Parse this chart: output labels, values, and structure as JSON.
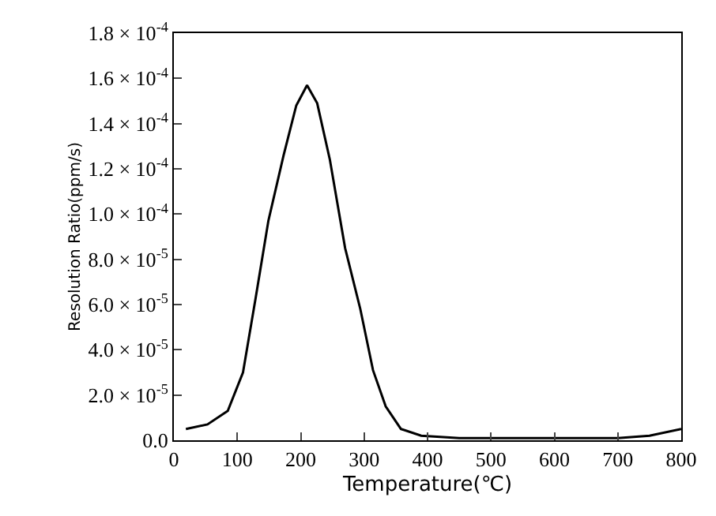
{
  "chart_data": {
    "type": "line",
    "xlabel": "Temperature(℃)",
    "ylabel": "Resolution Ratio(ppm/s)",
    "x": [
      19,
      53,
      85,
      109,
      129,
      149,
      173,
      193,
      210,
      226,
      246,
      270,
      294,
      314,
      334,
      358,
      390,
      450,
      500,
      600,
      700,
      750,
      800
    ],
    "series": [
      {
        "color": "#000000",
        "values": [
          5e-06,
          7e-06,
          1.3e-05,
          3e-05,
          6.3e-05,
          9.7e-05,
          0.000126,
          0.000148,
          0.000157,
          0.000149,
          0.000124,
          8.5e-05,
          5.8e-05,
          3.1e-05,
          1.5e-05,
          5e-06,
          2e-06,
          1e-06,
          1e-06,
          1e-06,
          1e-06,
          2e-06,
          5e-06
        ]
      }
    ],
    "xlim": [
      0,
      800
    ],
    "xticks": [
      0,
      100,
      200,
      300,
      400,
      500,
      600,
      700,
      800
    ],
    "ylim": [
      0,
      0.00018
    ],
    "yticks": [
      {
        "value": 0,
        "label": "0.0"
      },
      {
        "value": 2e-05,
        "label": "2.0 × 10$^{-5}$"
      },
      {
        "value": 4e-05,
        "label": "4.0 × 10$^{-5}$"
      },
      {
        "value": 6e-05,
        "label": "6.0 × 10$^{-5}$"
      },
      {
        "value": 8e-05,
        "label": "8.0 × 10$^{-5}$"
      },
      {
        "value": 0.0001,
        "label": "1.0 × 10$^{-4}$"
      },
      {
        "value": 0.00012,
        "label": "1.2 × 10$^{-4}$"
      },
      {
        "value": 0.00014,
        "label": "1.4 × 10$^{-4}$"
      },
      {
        "value": 0.00016,
        "label": "1.6 × 10$^{-4}$"
      },
      {
        "value": 0.00018,
        "label": "1.8 × 10$^{-4}$"
      }
    ],
    "marker": "none",
    "line_style": "solid"
  }
}
